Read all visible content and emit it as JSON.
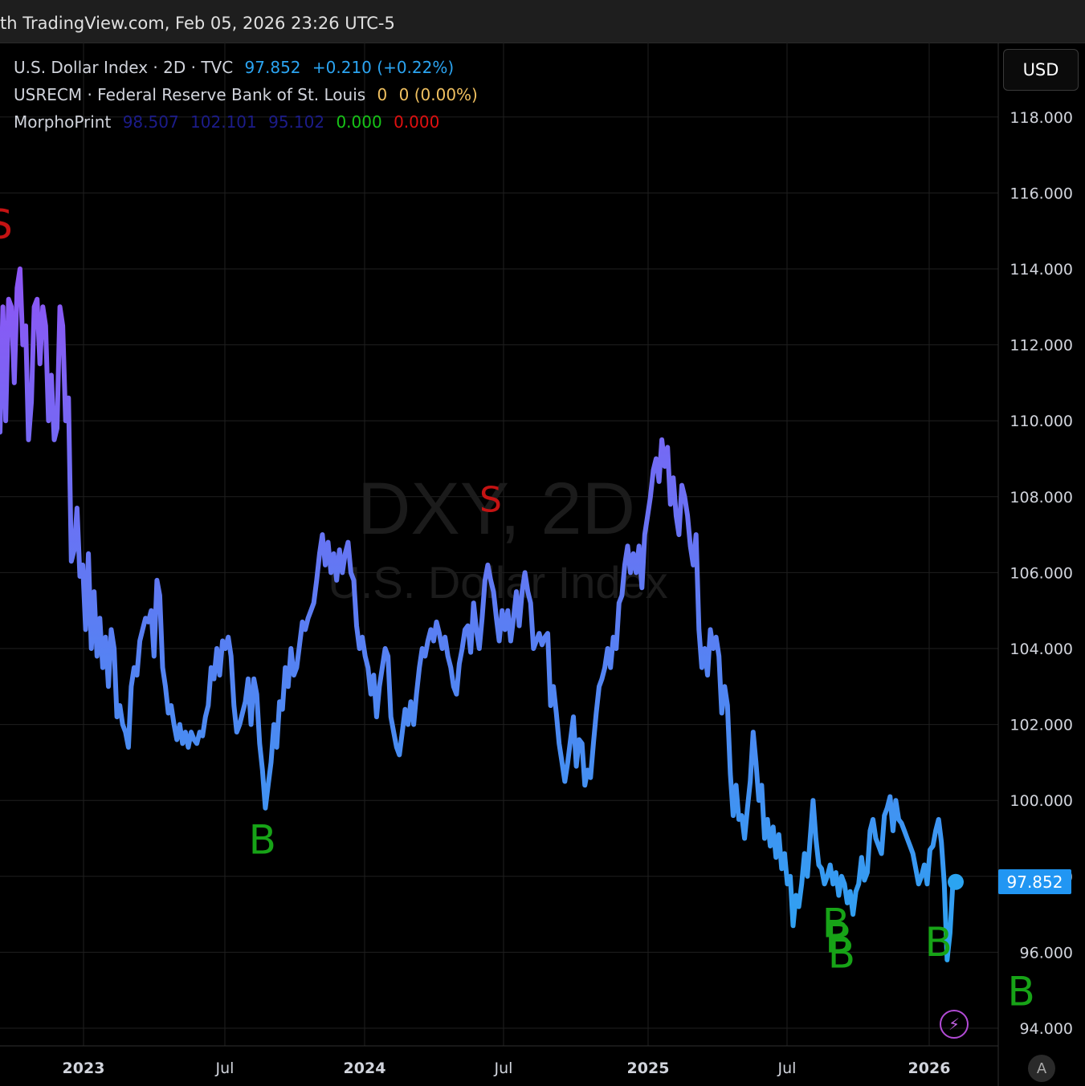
{
  "header": {
    "text": "th TradingView.com, Feb 05, 2026 23:26 UTC-5"
  },
  "legend": {
    "line1": {
      "name": "U.S. Dollar Index · 2D · TVC",
      "price": "97.852",
      "change": "+0.210 (+0.22%)"
    },
    "line2": {
      "name": "USRECM · Federal Reserve Bank of St. Louis",
      "v1": "0",
      "v2": "0 (0.00%)"
    },
    "line3": {
      "name": "MorphoPrint",
      "v1": "98.507",
      "v2": "102.101",
      "v3": "95.102",
      "v4": "0.000",
      "v5": "0.000"
    }
  },
  "currency_button": "USD",
  "price_tag": "97.852",
  "bolt_icon": "lightning-icon",
  "auto_button": "A",
  "watermark": {
    "symbol": "DXY, 2D",
    "description": "U.S. Dollar Index"
  },
  "colors": {
    "line_top": "#8e55f5",
    "line_bottom": "#2ba4f1",
    "buy": "#17a317",
    "sell": "#c41313",
    "accent": "#2196f3"
  },
  "chart_data": {
    "type": "line",
    "title": "U.S. Dollar Index · 2D · TVC",
    "ylim": [
      93.5,
      118.8
    ],
    "y_ticks": [
      "118.000",
      "116.000",
      "114.000",
      "112.000",
      "110.000",
      "108.000",
      "106.000",
      "104.000",
      "102.000",
      "100.000",
      "98.000",
      "96.000",
      "94.000"
    ],
    "x_ticks": [
      "2023",
      "Jul",
      "2024",
      "Jul",
      "2025",
      "Jul",
      "2026"
    ],
    "last_value": 97.852,
    "series": [
      {
        "values": [
          109.7,
          113.0,
          110.0,
          113.2,
          113.0,
          111.0,
          113.5,
          114.0,
          112.0,
          112.5,
          109.5,
          110.5,
          113.0,
          113.2,
          111.5,
          113.0,
          112.5,
          110.0,
          111.2,
          109.5,
          109.8,
          113.0,
          112.5,
          110.0,
          110.6,
          106.3,
          106.6,
          107.7,
          105.9,
          106.2,
          104.5,
          106.5,
          104.0,
          105.5,
          103.8,
          104.8,
          103.5,
          104.3,
          103.0,
          104.5,
          104.0,
          102.2,
          102.5,
          102.0,
          101.8,
          101.4,
          103.0,
          103.5,
          103.3,
          104.2,
          104.5,
          104.8,
          104.7,
          105.0,
          103.8,
          105.8,
          105.4,
          103.5,
          103.0,
          102.3,
          102.5,
          102.0,
          101.6,
          102.0,
          101.5,
          101.8,
          101.4,
          101.8,
          101.6,
          101.5,
          101.8,
          101.7,
          102.2,
          102.5,
          103.5,
          103.2,
          104.0,
          103.3,
          104.2,
          104.0,
          104.3,
          103.8,
          102.5,
          101.8,
          102.0,
          102.3,
          102.6,
          103.2,
          102.0,
          103.2,
          102.8,
          101.5,
          100.8,
          99.8,
          100.4,
          101.0,
          102.0,
          101.4,
          102.6,
          102.4,
          103.5,
          103.0,
          104.0,
          103.3,
          103.5,
          104.1,
          104.7,
          104.5,
          104.8,
          105.0,
          105.2,
          105.8,
          106.5,
          107.0,
          106.2,
          106.8,
          106.0,
          106.5,
          105.8,
          106.6,
          106.0,
          106.5,
          106.8,
          106.0,
          105.8,
          104.6,
          104.0,
          104.3,
          103.8,
          103.5,
          102.8,
          103.3,
          102.2,
          103.0,
          103.5,
          104.0,
          103.8,
          102.2,
          101.8,
          101.4,
          101.2,
          101.8,
          102.4,
          102.0,
          102.6,
          102.0,
          102.8,
          103.5,
          104.0,
          103.8,
          104.2,
          104.5,
          104.2,
          104.7,
          104.4,
          104.0,
          104.3,
          103.8,
          103.5,
          103.0,
          102.8,
          103.6,
          104.0,
          104.5,
          104.6,
          103.9,
          105.2,
          104.5,
          104.0,
          104.8,
          105.8,
          106.2,
          105.8,
          105.5,
          104.8,
          104.2,
          105.0,
          104.5,
          105.0,
          104.2,
          104.8,
          105.5,
          104.6,
          105.5,
          106.0,
          105.5,
          105.2,
          104.0,
          104.2,
          104.4,
          104.1,
          104.3,
          104.4,
          102.5,
          103.0,
          102.3,
          101.5,
          101.0,
          100.5,
          101.0,
          101.6,
          102.2,
          100.9,
          101.6,
          101.5,
          100.4,
          100.8,
          100.6,
          101.5,
          102.3,
          103.0,
          103.2,
          103.5,
          104.0,
          103.5,
          104.3,
          104.0,
          105.2,
          105.4,
          106.2,
          106.7,
          106.0,
          106.5,
          106.0,
          106.7,
          105.6,
          107.0,
          107.5,
          108.0,
          108.7,
          109.0,
          108.4,
          109.5,
          108.8,
          109.3,
          107.8,
          108.5,
          107.5,
          107.0,
          108.3,
          108.0,
          107.5,
          106.7,
          106.2,
          107.0,
          104.5,
          103.5,
          104.0,
          103.3,
          104.5,
          104.0,
          104.3,
          103.8,
          102.3,
          103.0,
          102.5,
          100.7,
          99.6,
          100.4,
          99.5,
          99.6,
          99.0,
          99.8,
          100.5,
          101.8,
          101.0,
          100.0,
          100.4,
          99.0,
          99.5,
          98.8,
          99.3,
          98.5,
          99.1,
          98.2,
          98.6,
          97.8,
          98.0,
          96.7,
          97.5,
          97.2,
          97.8,
          98.6,
          98.0,
          99.0,
          100.0,
          99.0,
          98.3,
          98.2,
          97.8,
          98.0,
          98.3,
          97.8,
          98.1,
          97.5,
          98.0,
          97.8,
          97.3,
          97.6,
          97.0,
          97.6,
          97.8,
          98.5,
          97.9,
          98.1,
          99.2,
          99.5,
          99.0,
          98.8,
          98.6,
          99.6,
          99.8,
          100.1,
          99.2,
          100.0,
          99.5,
          99.4,
          99.2,
          99.0,
          98.8,
          98.6,
          98.2,
          97.8,
          98.0,
          98.3,
          97.8,
          98.7,
          98.8,
          99.2,
          99.5,
          98.9,
          97.8,
          95.8,
          96.5,
          97.8,
          97.9
        ]
      }
    ],
    "signals": [
      {
        "label": "S",
        "type": "sell",
        "index": 0,
        "value": 114.8
      },
      {
        "label": "B",
        "type": "buy",
        "index": 92,
        "value": 98.6
      },
      {
        "label": "S",
        "type": "sell",
        "index": 172,
        "value": 107.6
      },
      {
        "label": "B",
        "type": "buy",
        "index": 293,
        "value": 96.4
      },
      {
        "label": "B",
        "type": "buy",
        "index": 294,
        "value": 96.0
      },
      {
        "label": "B",
        "type": "buy",
        "index": 295,
        "value": 95.6
      },
      {
        "label": "B",
        "type": "buy",
        "index": 329,
        "value": 95.9
      },
      {
        "label": "B",
        "type": "buy",
        "index": 358,
        "value": 94.6
      }
    ]
  }
}
